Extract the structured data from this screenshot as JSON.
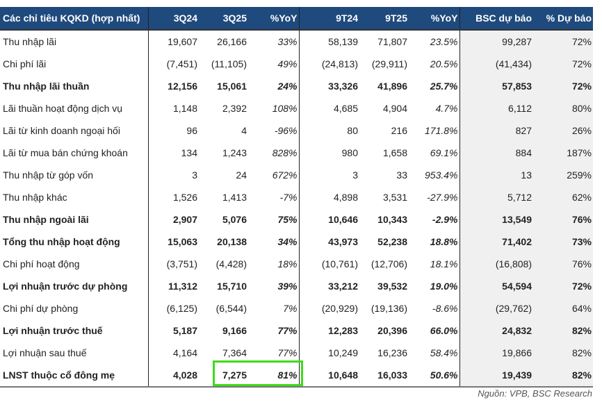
{
  "headers": [
    "Các chỉ tiêu KQKD (hợp nhất)",
    "3Q24",
    "3Q25",
    "%YoY",
    "9T24",
    "9T25",
    "%YoY",
    "BSC dự báo",
    "% Dự báo"
  ],
  "rows": [
    {
      "label": "Thu nhập lãi",
      "bold": false,
      "v": [
        "19,607",
        "26,166",
        "33%",
        "58,139",
        "71,807",
        "23.5%",
        "99,287",
        "72%"
      ]
    },
    {
      "label": "Chi phí lãi",
      "bold": false,
      "v": [
        "(7,451)",
        "(11,105)",
        "49%",
        "(24,813)",
        "(29,911)",
        "20.5%",
        "(41,434)",
        "72%"
      ]
    },
    {
      "label": "Thu nhập lãi thuần",
      "bold": true,
      "v": [
        "12,156",
        "15,061",
        "24%",
        "33,326",
        "41,896",
        "25.7%",
        "57,853",
        "72%"
      ]
    },
    {
      "label": "Lãi thuần hoạt động dịch vụ",
      "bold": false,
      "v": [
        "1,148",
        "2,392",
        "108%",
        "4,685",
        "4,904",
        "4.7%",
        "6,112",
        "80%"
      ]
    },
    {
      "label": "Lãi từ kinh doanh ngoại hối",
      "bold": false,
      "v": [
        "96",
        "4",
        "-96%",
        "80",
        "216",
        "171.8%",
        "827",
        "26%"
      ]
    },
    {
      "label": "Lãi từ mua bán chứng khoán",
      "bold": false,
      "v": [
        "134",
        "1,243",
        "828%",
        "980",
        "1,658",
        "69.1%",
        "884",
        "187%"
      ]
    },
    {
      "label": "Thu nhập từ góp vốn",
      "bold": false,
      "v": [
        "3",
        "24",
        "672%",
        "3",
        "33",
        "953.4%",
        "13",
        "259%"
      ]
    },
    {
      "label": "Thu nhập khác",
      "bold": false,
      "v": [
        "1,526",
        "1,413",
        "-7%",
        "4,898",
        "3,531",
        "-27.9%",
        "5,712",
        "62%"
      ]
    },
    {
      "label": "Thu nhập ngoài lãi",
      "bold": true,
      "v": [
        "2,907",
        "5,076",
        "75%",
        "10,646",
        "10,343",
        "-2.9%",
        "13,549",
        "76%"
      ]
    },
    {
      "label": "Tổng thu nhập hoạt động",
      "bold": true,
      "v": [
        "15,063",
        "20,138",
        "34%",
        "43,973",
        "52,238",
        "18.8%",
        "71,402",
        "73%"
      ]
    },
    {
      "label": "Chi phí hoạt động",
      "bold": false,
      "v": [
        "(3,751)",
        "(4,428)",
        "18%",
        "(10,761)",
        "(12,706)",
        "18.1%",
        "(16,808)",
        "76%"
      ]
    },
    {
      "label": "Lợi nhuận trước dự phòng",
      "bold": true,
      "v": [
        "11,312",
        "15,710",
        "39%",
        "33,212",
        "39,532",
        "19.0%",
        "54,594",
        "72%"
      ]
    },
    {
      "label": "Chi phí dự phòng",
      "bold": false,
      "v": [
        "(6,125)",
        "(6,544)",
        "7%",
        "(20,929)",
        "(19,136)",
        "-8.6%",
        "(29,762)",
        "64%"
      ]
    },
    {
      "label": "Lợi nhuận trước thuế",
      "bold": true,
      "v": [
        "5,187",
        "9,166",
        "77%",
        "12,283",
        "20,396",
        "66.0%",
        "24,832",
        "82%"
      ]
    },
    {
      "label": "Lợi nhuận sau thuế",
      "bold": false,
      "v": [
        "4,164",
        "7,364",
        "77%",
        "10,249",
        "16,236",
        "58.4%",
        "19,866",
        "82%"
      ]
    },
    {
      "label": "LNST thuộc cổ đông mẹ",
      "bold": true,
      "v": [
        "4,028",
        "7,275",
        "81%",
        "10,648",
        "16,033",
        "50.6%",
        "19,439",
        "82%"
      ]
    }
  ],
  "source": "Nguồn: VPB, BSC Research",
  "highlight_color": "#3ddc1a"
}
